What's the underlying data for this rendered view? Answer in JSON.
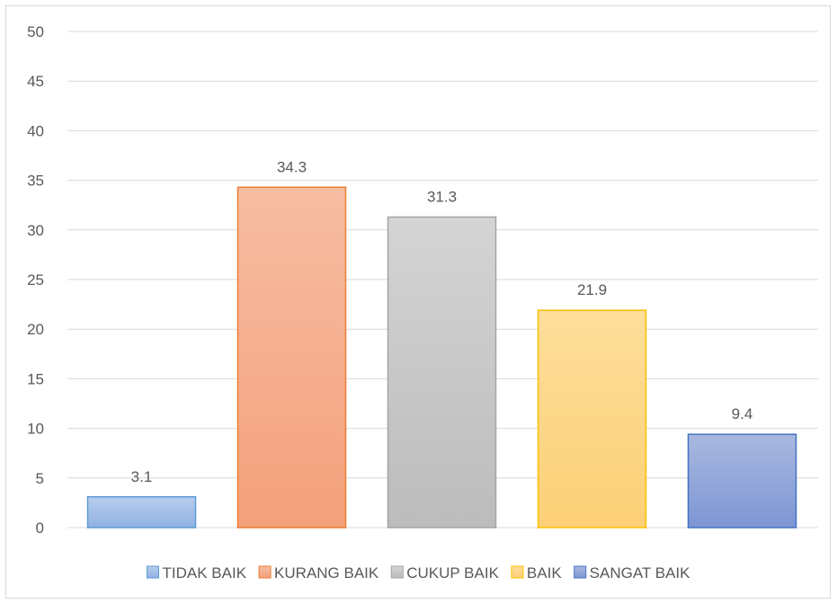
{
  "chart_data": {
    "type": "bar",
    "categories": [
      "TIDAK BAIK",
      "KURANG BAIK",
      "CUKUP BAIK",
      "BAIK",
      "SANGAT BAIK"
    ],
    "values": [
      3.1,
      34.3,
      31.3,
      21.9,
      9.4
    ],
    "data_labels": [
      "3.1",
      "34.3",
      "31.3",
      "21.9",
      "9.4"
    ],
    "colors": [
      {
        "top": "#b7cdec",
        "bottom": "#8fb1e2",
        "stroke": "#5b9bd5"
      },
      {
        "top": "#f7bda3",
        "bottom": "#f4a07b",
        "stroke": "#ed7d31"
      },
      {
        "top": "#d4d4d4",
        "bottom": "#bcbcbc",
        "stroke": "#a5a5a5"
      },
      {
        "top": "#fdde9a",
        "bottom": "#fcd077",
        "stroke": "#ffc000"
      },
      {
        "top": "#a9b8e0",
        "bottom": "#7d96d3",
        "stroke": "#4472c4"
      }
    ],
    "ylim": [
      0,
      50
    ],
    "yticks": [
      "0",
      "5",
      "10",
      "15",
      "20",
      "25",
      "30",
      "35",
      "40",
      "45",
      "50"
    ],
    "grid": true,
    "legend_position": "bottom",
    "title": "",
    "xlabel": "",
    "ylabel": ""
  }
}
